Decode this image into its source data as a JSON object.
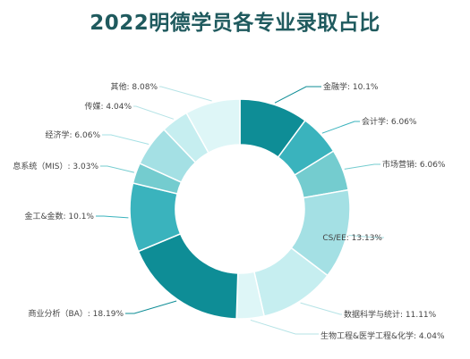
{
  "chart_data": {
    "type": "pie",
    "title": "2022明德学员各专业录取占比",
    "donut": true,
    "slices": [
      {
        "label": "金融学",
        "value": 10.1,
        "display": "10.1%",
        "color": "#0e8d96"
      },
      {
        "label": "会计学",
        "value": 6.06,
        "display": "6.06%",
        "color": "#3ab3bd"
      },
      {
        "label": "市场营销",
        "value": 6.06,
        "display": "6.06%",
        "color": "#74cccf"
      },
      {
        "label": "CS/EE",
        "value": 13.13,
        "display": "13.13%",
        "color": "#a4e0e4"
      },
      {
        "label": "数据科学与统计",
        "value": 11.11,
        "display": "11.11%",
        "color": "#c6eef0"
      },
      {
        "label": "生物工程&医学工程&化学",
        "value": 4.04,
        "display": "4.04%",
        "color": "#def6f7"
      },
      {
        "label": "商业分析（BA）",
        "value": 18.19,
        "display": "18.19%",
        "color": "#0e8d96"
      },
      {
        "label": "金工&金数",
        "value": 10.1,
        "display": "10.1%",
        "color": "#3ab3bd"
      },
      {
        "label": "息系统（MIS）",
        "value": 3.03,
        "display": "3.03%",
        "color": "#74cccf"
      },
      {
        "label": "经济学",
        "value": 6.06,
        "display": "6.06%",
        "color": "#a4e0e4"
      },
      {
        "label": "传媒",
        "value": 4.04,
        "display": "4.04%",
        "color": "#c6eef0"
      },
      {
        "label": "其他",
        "value": 8.08,
        "display": "8.08%",
        "color": "#def6f7"
      }
    ],
    "legend": "none"
  }
}
